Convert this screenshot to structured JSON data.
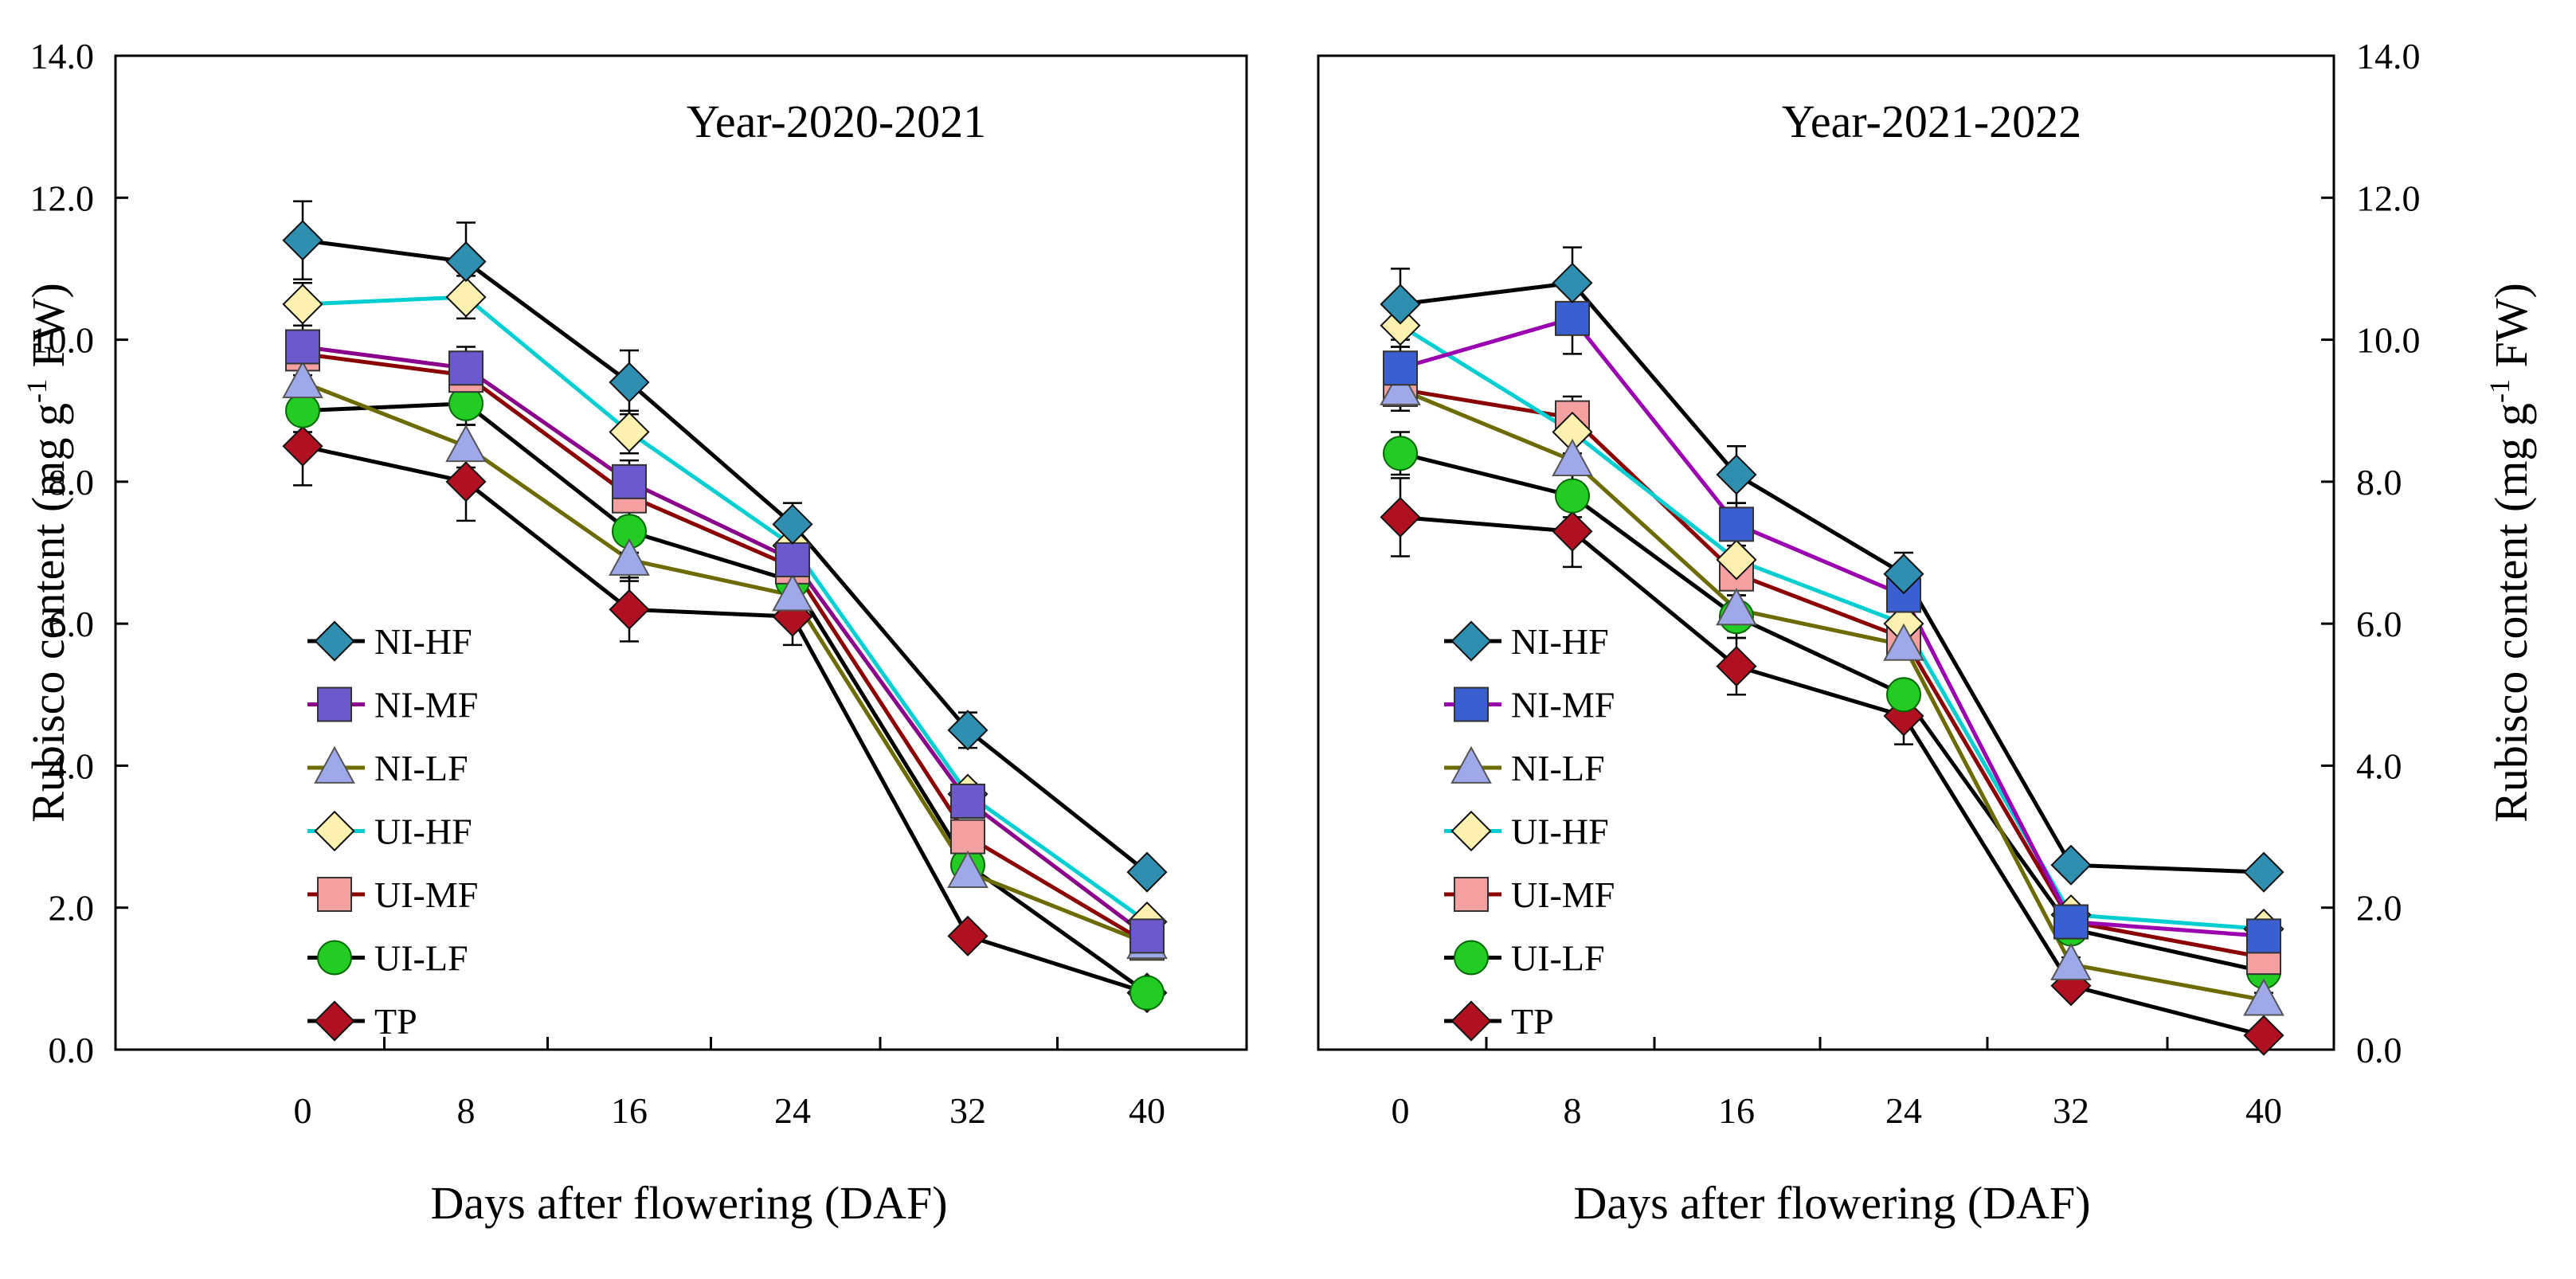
{
  "chart_data": [
    {
      "type": "line",
      "title": "Year-2020-2021",
      "xlabel": "Days after flowering (DAF)",
      "ylabel": "Rubisco content (mg g-1 FW)",
      "ylabel_parts": {
        "pre": "Rubisco content (mg g",
        "sup": "-1",
        "post": " FW)"
      },
      "x": [
        0,
        8,
        16,
        24,
        32,
        40
      ],
      "x_tick_labels": [
        "0",
        "8",
        "16",
        "24",
        "32",
        "40"
      ],
      "ylim": [
        0,
        14
      ],
      "y_tick_labels": [
        "0.0",
        "2.0",
        "4.0",
        "6.0",
        "8.0",
        "10.0",
        "12.0",
        "14.0"
      ],
      "y_axis_side": "left",
      "legend_position": "lower-left",
      "series": [
        {
          "name": "NI-HF",
          "color": "#2E8FB0",
          "line_color": "#000000",
          "marker": "diamond",
          "values": [
            11.4,
            11.1,
            9.4,
            7.4,
            4.5,
            2.5
          ],
          "errors": [
            0.55,
            0.55,
            0.45,
            0.3,
            0.25,
            0.1
          ]
        },
        {
          "name": "NI-MF",
          "color": "#6A5ACD",
          "line_color": "#8B008B",
          "marker": "square",
          "values": [
            9.9,
            9.6,
            8.0,
            6.9,
            3.5,
            1.6
          ],
          "errors": [
            0.3,
            0.3,
            0.3,
            0.2,
            0.15,
            0.1
          ]
        },
        {
          "name": "NI-LF",
          "color": "#9FA8E8",
          "line_color": "#6B6B00",
          "marker": "triangle",
          "values": [
            9.4,
            8.5,
            6.9,
            6.4,
            2.5,
            1.5
          ],
          "errors": [
            0.3,
            0.3,
            0.3,
            0.2,
            0.15,
            0.1
          ]
        },
        {
          "name": "UI-HF",
          "color": "#FFF2B0",
          "line_color": "#00CED1",
          "marker": "diamond",
          "values": [
            10.5,
            10.6,
            8.7,
            7.1,
            3.6,
            1.8
          ],
          "errors": [
            0.3,
            0.3,
            0.3,
            0.2,
            0.15,
            0.1
          ]
        },
        {
          "name": "UI-MF",
          "color": "#F4A0A0",
          "line_color": "#8B0000",
          "marker": "square",
          "values": [
            9.8,
            9.5,
            7.8,
            6.8,
            3.0,
            1.5
          ],
          "errors": [
            0.3,
            0.3,
            0.3,
            0.2,
            0.15,
            0.1
          ]
        },
        {
          "name": "UI-LF",
          "color": "#22CC22",
          "line_color": "#000000",
          "marker": "circle",
          "values": [
            9.0,
            9.1,
            7.3,
            6.6,
            2.6,
            0.8
          ],
          "errors": [
            0.3,
            0.3,
            0.3,
            0.2,
            0.15,
            0.1
          ]
        },
        {
          "name": "TP",
          "color": "#B01020",
          "line_color": "#000000",
          "marker": "diamond",
          "values": [
            8.5,
            8.0,
            6.2,
            6.1,
            1.6,
            0.8
          ],
          "errors": [
            0.55,
            0.55,
            0.45,
            0.4,
            0.1,
            0.1
          ]
        }
      ]
    },
    {
      "type": "line",
      "title": "Year-2021-2022",
      "xlabel": "Days after flowering (DAF)",
      "ylabel": "Rubisco content (mg g-1 FW)",
      "ylabel_parts": {
        "pre": "Rubisco content (mg g",
        "sup": "-1",
        "post": " FW)"
      },
      "x": [
        0,
        8,
        16,
        24,
        32,
        40
      ],
      "x_tick_labels": [
        "0",
        "8",
        "16",
        "24",
        "32",
        "40"
      ],
      "ylim": [
        0,
        14
      ],
      "y_tick_labels": [
        "0.0",
        "2.0",
        "4.0",
        "6.0",
        "8.0",
        "10.0",
        "12.0",
        "14.0"
      ],
      "y_axis_side": "right",
      "legend_position": "lower-left",
      "series": [
        {
          "name": "NI-HF",
          "color": "#2E8FB0",
          "line_color": "#000000",
          "marker": "diamond",
          "values": [
            10.5,
            10.8,
            8.1,
            6.7,
            2.6,
            2.5
          ],
          "errors": [
            0.5,
            0.5,
            0.4,
            0.3,
            0.1,
            0.1
          ]
        },
        {
          "name": "NI-MF",
          "color": "#3A5FD0",
          "line_color": "#9B00B0",
          "marker": "square",
          "values": [
            9.6,
            10.3,
            7.4,
            6.4,
            1.8,
            1.6
          ],
          "errors": [
            0.3,
            0.5,
            0.3,
            0.2,
            0.1,
            0.1
          ]
        },
        {
          "name": "NI-LF",
          "color": "#9FA8E8",
          "line_color": "#6B6B00",
          "marker": "triangle",
          "values": [
            9.3,
            8.3,
            6.2,
            5.7,
            1.2,
            0.7
          ],
          "errors": [
            0.3,
            0.3,
            0.3,
            0.2,
            0.1,
            0.1
          ]
        },
        {
          "name": "UI-HF",
          "color": "#FFF2B0",
          "line_color": "#00CED1",
          "marker": "diamond",
          "values": [
            10.2,
            8.7,
            6.9,
            6.0,
            1.9,
            1.7
          ],
          "errors": [
            0.3,
            0.3,
            0.3,
            0.2,
            0.1,
            0.1
          ]
        },
        {
          "name": "UI-MF",
          "color": "#F4A0A0",
          "line_color": "#8B0000",
          "marker": "square",
          "values": [
            9.3,
            8.9,
            6.7,
            5.8,
            1.8,
            1.3
          ],
          "errors": [
            0.3,
            0.3,
            0.3,
            0.2,
            0.1,
            0.1
          ]
        },
        {
          "name": "UI-LF",
          "color": "#22CC22",
          "line_color": "#000000",
          "marker": "circle",
          "values": [
            8.4,
            7.8,
            6.1,
            5.0,
            1.7,
            1.1
          ],
          "errors": [
            0.3,
            0.3,
            0.3,
            0.2,
            0.1,
            0.1
          ]
        },
        {
          "name": "TP",
          "color": "#B01020",
          "line_color": "#000000",
          "marker": "diamond",
          "values": [
            7.5,
            7.3,
            5.4,
            4.7,
            0.9,
            0.2
          ],
          "errors": [
            0.55,
            0.5,
            0.4,
            0.4,
            0.1,
            0.05
          ]
        }
      ]
    }
  ]
}
